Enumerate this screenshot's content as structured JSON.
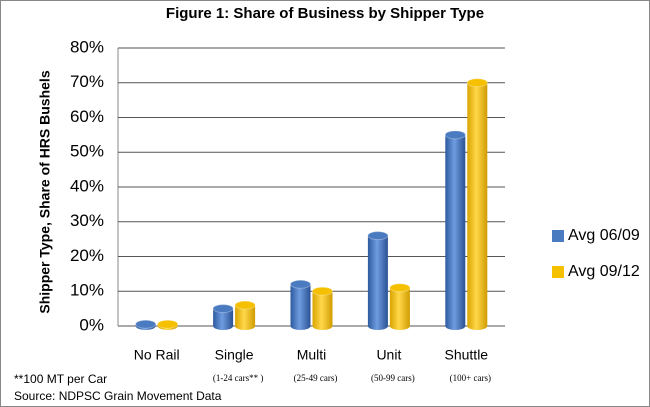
{
  "chart_data": {
    "type": "bar",
    "title": "Figure 1: Share of Business by Shipper Type",
    "ylabel": "Shipper Type, Share of HRS Bushels",
    "categories": [
      "No Rail",
      "Single",
      "Multi",
      "Unit",
      "Shuttle"
    ],
    "category_notes": [
      null,
      "(1-24 cars** )",
      "(25-49 cars)",
      "(50-99 cars)",
      "(100+ cars)"
    ],
    "series": [
      {
        "name": "Avg 06/09",
        "color": "#4a7ac0",
        "values": [
          0.5,
          5,
          12,
          26,
          55
        ]
      },
      {
        "name": "Avg 09/12",
        "color": "#f5c000",
        "values": [
          0.5,
          6,
          10,
          11,
          70
        ]
      }
    ],
    "ylim": [
      0,
      80
    ],
    "yticks": [
      {
        "value": 0,
        "label": "0%"
      },
      {
        "value": 10,
        "label": "10%"
      },
      {
        "value": 20,
        "label": "20%"
      },
      {
        "value": 30,
        "label": "30%"
      },
      {
        "value": 40,
        "label": "40%"
      },
      {
        "value": 50,
        "label": "50%"
      },
      {
        "value": 60,
        "label": "60%"
      },
      {
        "value": 70,
        "label": "70%"
      },
      {
        "value": 80,
        "label": "80%"
      }
    ],
    "grid": true,
    "legend": "right",
    "footnotes": [
      "**100 MT per Car",
      "Source: NDPSC Grain Movement Data"
    ]
  }
}
